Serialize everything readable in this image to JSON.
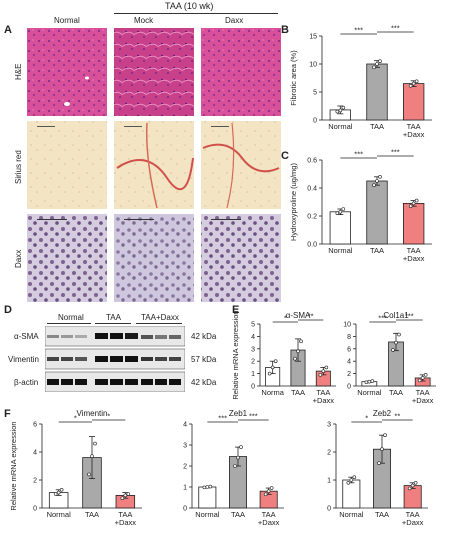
{
  "panels": {
    "A": "A",
    "B": "B",
    "C": "C",
    "D": "D",
    "E": "E",
    "F": "F"
  },
  "histology": {
    "group_header": "TAA (10 wk)",
    "columns": [
      "Normal",
      "Mock",
      "Daxx"
    ],
    "rows": [
      "H&E",
      "Sirius red",
      "Daxx"
    ]
  },
  "western": {
    "groups": [
      "Normal",
      "TAA",
      "TAA+Daxx"
    ],
    "proteins": [
      "α-SMA",
      "Vimentin",
      "β-actin"
    ],
    "sizes": [
      "42 kDa",
      "57 kDa",
      "42 kDa"
    ]
  },
  "colors": {
    "normal": "#ffffff",
    "taa": "#a9a9a9",
    "daxx": "#f08080"
  },
  "chart_data": [
    {
      "id": "B",
      "type": "bar",
      "ylabel": "Fibrotic area (%)",
      "categories": [
        "Normal",
        "TAA",
        "TAA\n+Daxx"
      ],
      "values": [
        1.8,
        10.0,
        6.5
      ],
      "errors": [
        0.7,
        0.6,
        0.5
      ],
      "points": [
        [
          1.5,
          1.7,
          2.2
        ],
        [
          9.4,
          10.0,
          10.5
        ],
        [
          6.1,
          6.5,
          6.9
        ]
      ],
      "ylim": [
        0,
        15
      ],
      "yticks": [
        0,
        5,
        10,
        15
      ],
      "sig": [
        {
          "from": 0,
          "to": 1,
          "label": "***",
          "level": 0
        },
        {
          "from": 1,
          "to": 2,
          "label": "***",
          "level": 0
        }
      ]
    },
    {
      "id": "C",
      "type": "bar",
      "ylabel": "Hydroxyproline (ug/mg)",
      "categories": [
        "Normal",
        "TAA",
        "TAA\n+Daxx"
      ],
      "values": [
        0.23,
        0.45,
        0.29
      ],
      "errors": [
        0.02,
        0.03,
        0.02
      ],
      "points": [
        [
          0.22,
          0.23,
          0.25
        ],
        [
          0.42,
          0.45,
          0.48
        ],
        [
          0.27,
          0.29,
          0.31
        ]
      ],
      "ylim": [
        0,
        0.6
      ],
      "yticks": [
        0.0,
        0.2,
        0.4,
        0.6
      ],
      "sig": [
        {
          "from": 0,
          "to": 1,
          "label": "***",
          "level": 0
        },
        {
          "from": 1,
          "to": 2,
          "label": "***",
          "level": 0
        }
      ]
    },
    {
      "id": "E1",
      "type": "bar",
      "title": "α-SMA",
      "ylabel": "Relative mRNA expression",
      "categories": [
        "Norma",
        "TAA",
        "TAA\n+Daxx"
      ],
      "values": [
        1.5,
        2.9,
        1.2
      ],
      "errors": [
        0.5,
        0.9,
        0.3
      ],
      "points": [
        [
          1.0,
          1.5,
          2.0
        ],
        [
          2.2,
          2.8,
          3.6
        ],
        [
          0.9,
          1.2,
          1.5
        ]
      ],
      "ylim": [
        0,
        5
      ],
      "yticks": [
        0,
        1,
        2,
        3,
        4,
        5
      ],
      "sig": [
        {
          "from": 0,
          "to": 1,
          "label": "*",
          "level": 0
        },
        {
          "from": 1,
          "to": 2,
          "label": "**",
          "level": 0
        }
      ]
    },
    {
      "id": "E2",
      "type": "bar",
      "title": "Col1a1",
      "ylabel": "",
      "categories": [
        "Normal",
        "TAA",
        "TAA\n+Daxx"
      ],
      "values": [
        0.7,
        7.1,
        1.3
      ],
      "errors": [
        0.1,
        1.4,
        0.5
      ],
      "points": [
        [
          0.6,
          0.7,
          0.8
        ],
        [
          5.8,
          7.0,
          8.3
        ],
        [
          0.9,
          1.3,
          1.8
        ]
      ],
      "ylim": [
        0,
        10
      ],
      "yticks": [
        0,
        2,
        4,
        6,
        8,
        10
      ],
      "sig": [
        {
          "from": 0,
          "to": 1,
          "label": "***",
          "level": 0
        },
        {
          "from": 1,
          "to": 2,
          "label": "***",
          "level": 0
        }
      ]
    },
    {
      "id": "F1",
      "type": "bar",
      "title": "Vimentin",
      "ylabel": "Relative mRNA expression",
      "categories": [
        "Normal",
        "TAA",
        "TAA\n+Daxx"
      ],
      "values": [
        1.1,
        3.6,
        0.9
      ],
      "errors": [
        0.2,
        1.5,
        0.2
      ],
      "points": [
        [
          1.0,
          1.1,
          1.3
        ],
        [
          2.4,
          3.7,
          4.6
        ],
        [
          0.7,
          0.9,
          1.0
        ]
      ],
      "ylim": [
        0,
        6
      ],
      "yticks": [
        0,
        2,
        4,
        6
      ],
      "sig": [
        {
          "from": 0,
          "to": 1,
          "label": "*",
          "level": 0
        },
        {
          "from": 1,
          "to": 2,
          "label": "*",
          "level": 0
        }
      ]
    },
    {
      "id": "F2",
      "type": "bar",
      "title": "Zeb1",
      "ylabel": "",
      "categories": [
        "Normal",
        "TAA",
        "TAA\n+Daxx"
      ],
      "values": [
        1.0,
        2.45,
        0.8
      ],
      "errors": [
        0.03,
        0.45,
        0.15
      ],
      "points": [
        [
          0.98,
          1.0,
          1.02
        ],
        [
          2.0,
          2.4,
          2.9
        ],
        [
          0.65,
          0.8,
          0.95
        ]
      ],
      "ylim": [
        0,
        4
      ],
      "yticks": [
        0,
        1,
        2,
        3,
        4
      ],
      "sig": [
        {
          "from": 0,
          "to": 1,
          "label": "***",
          "level": 0
        },
        {
          "from": 1,
          "to": 2,
          "label": "***",
          "level": 0
        }
      ]
    },
    {
      "id": "F3",
      "type": "bar",
      "title": "Zeb2",
      "ylabel": "",
      "categories": [
        "Normal",
        "TAA",
        "TAA\n+Daxx"
      ],
      "values": [
        1.0,
        2.1,
        0.8
      ],
      "errors": [
        0.1,
        0.5,
        0.1
      ],
      "points": [
        [
          0.9,
          1.0,
          1.1
        ],
        [
          1.6,
          2.1,
          2.6
        ],
        [
          0.7,
          0.8,
          0.9
        ]
      ],
      "ylim": [
        0,
        3
      ],
      "yticks": [
        0,
        1,
        2,
        3
      ],
      "sig": [
        {
          "from": 0,
          "to": 1,
          "label": "*",
          "level": 0
        },
        {
          "from": 1,
          "to": 2,
          "label": "**",
          "level": 0
        }
      ]
    }
  ]
}
